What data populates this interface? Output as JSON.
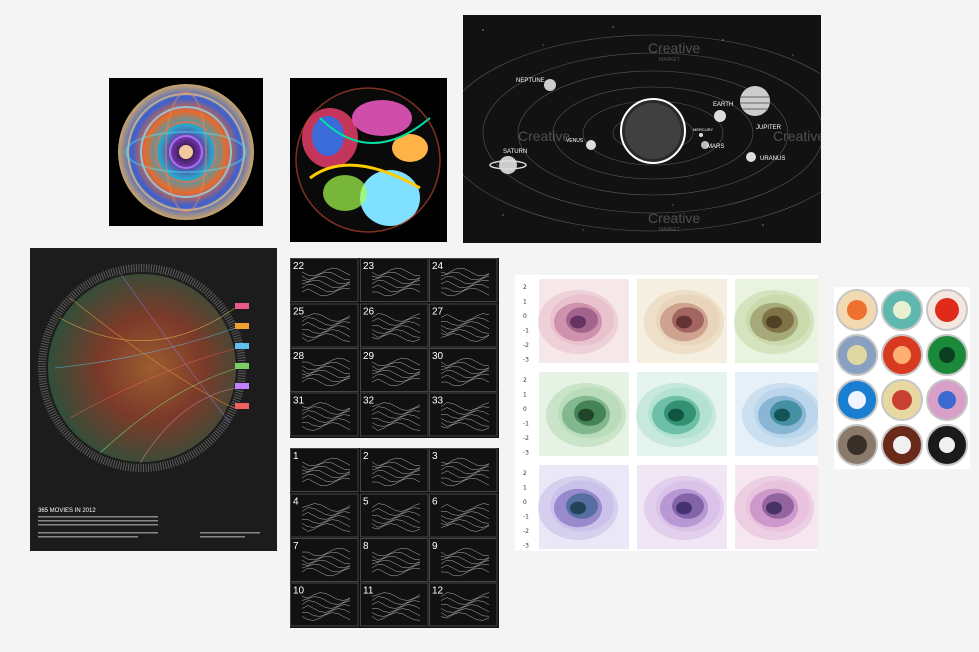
{
  "solar": {
    "planets": [
      "NEPTUNE",
      "VENUS",
      "SATURN",
      "EARTH",
      "MERCURY",
      "MARS",
      "JUPITER",
      "URANUS"
    ],
    "watermark": "Creative",
    "watermark_sub": "MARKET"
  },
  "poster": {
    "title": "365 MOVIES IN 2012"
  },
  "grid_top": {
    "numbers": [
      "22",
      "23",
      "24",
      "25",
      "26",
      "27",
      "28",
      "29",
      "30",
      "31",
      "32",
      "33"
    ]
  },
  "grid_bottom": {
    "numbers": [
      "1",
      "2",
      "3",
      "4",
      "5",
      "6",
      "7",
      "8",
      "9",
      "10",
      "11",
      "12"
    ]
  },
  "density": {
    "y_ticks": [
      "2",
      "1",
      "0",
      "-1",
      "-2",
      "-3"
    ],
    "rows": 3,
    "cols": 3
  },
  "colors": {
    "background": "#f4f4f4",
    "dark_tile": "#111111"
  }
}
